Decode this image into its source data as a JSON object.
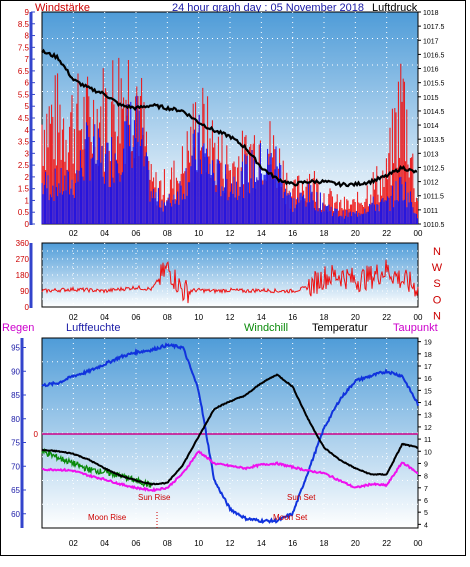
{
  "panel1": {
    "left_label": "Windstärke",
    "title": "24 hour graph day : 05 November 2018",
    "right_label": "Luftdruck",
    "left_ticks": [
      "0",
      "0.5",
      "1",
      "1.5",
      "2",
      "2.5",
      "3",
      "3.5",
      "4",
      "4.5",
      "5",
      "5.5",
      "6",
      "6.5",
      "7",
      "7.5",
      "8",
      "8.5",
      "9"
    ],
    "right_ticks": [
      "1010.5",
      "1011",
      "1011.5",
      "1012",
      "1012.5",
      "1013",
      "1013.5",
      "1014",
      "1014.5",
      "1015",
      "1015.5",
      "1016",
      "1016.5",
      "1017",
      "1017.5",
      "1018"
    ],
    "x_ticks": [
      "02",
      "04",
      "06",
      "08",
      "10",
      "12",
      "14",
      "16",
      "18",
      "20",
      "22",
      "00"
    ]
  },
  "panel2": {
    "left_ticks": [
      "0",
      "90",
      "180",
      "270",
      "360"
    ],
    "right_letters": [
      "N",
      "W",
      "S",
      "O",
      "N"
    ],
    "x_ticks": [
      "02",
      "04",
      "06",
      "08",
      "10",
      "12",
      "14",
      "16",
      "18",
      "20",
      "22",
      "00"
    ]
  },
  "panel3": {
    "label_regen": "Regen",
    "label_luftfeuchte": "Luftfeuchte",
    "label_windchill": "Windchill",
    "label_temperatur": "Temperatur",
    "label_taupunkt": "Taupunkt",
    "left_ticks": [
      "60",
      "65",
      "70",
      "75",
      "80",
      "85",
      "90",
      "95"
    ],
    "rain_zero": "0",
    "right_ticks": [
      "4",
      "5",
      "6",
      "7",
      "8",
      "9",
      "10",
      "11",
      "12",
      "13",
      "14",
      "15",
      "16",
      "17",
      "18",
      "19"
    ],
    "x_ticks": [
      "02",
      "04",
      "06",
      "08",
      "10",
      "12",
      "14",
      "16",
      "18",
      "20",
      "22",
      "00"
    ],
    "annotations": {
      "sun_rise": "Sun Rise",
      "sun_set": "Sun Set",
      "moon_rise": "Moon Rise",
      "moon_set": "Moon Set"
    }
  },
  "colors": {
    "wind_gust": "#ee1111",
    "wind_avg": "#1111ee",
    "pressure": "#000000",
    "direction": "#ee1111",
    "humidity": "#1133dd",
    "temperature": "#000000",
    "windchill": "#0a8a0a",
    "dewpoint": "#ee11ee",
    "rain_line": "#cc0088",
    "axis_left": "#3344cc",
    "axis_red": "#cc0000",
    "plot_top": "#4f9cd8",
    "plot_bottom": "#ffffff"
  },
  "chart_data": [
    {
      "type": "line",
      "title": "24 hour graph day : 05 November 2018",
      "x_unit": "hour",
      "xlim": [
        0,
        24
      ],
      "series": [
        {
          "name": "Luftdruck",
          "axis": "right",
          "ylim": [
            1010.5,
            1018
          ],
          "x": [
            0,
            1,
            2,
            3,
            4,
            5,
            6,
            7,
            8,
            9,
            10,
            11,
            12,
            13,
            14,
            15,
            16,
            17,
            18,
            19,
            20,
            21,
            22,
            23,
            24
          ],
          "values": [
            1016.6,
            1016.4,
            1015.6,
            1015.3,
            1015.1,
            1014.7,
            1014.6,
            1014.7,
            1014.6,
            1014.5,
            1014.1,
            1013.8,
            1013.6,
            1013.2,
            1012.5,
            1012.1,
            1011.9,
            1012.0,
            1012.0,
            1011.9,
            1011.9,
            1012.0,
            1012.2,
            1012.5,
            1012.3
          ]
        },
        {
          "name": "Windstärke",
          "axis": "left",
          "ylim": [
            0,
            9
          ],
          "x": [
            0,
            1,
            2,
            3,
            4,
            5,
            6,
            7,
            8,
            9,
            10,
            11,
            12,
            13,
            14,
            15,
            16,
            17,
            18,
            19,
            20,
            21,
            22,
            23,
            24
          ],
          "values_gust": [
            5.5,
            5.5,
            5.5,
            5.5,
            6,
            7,
            7.5,
            2,
            2,
            3,
            5.5,
            4,
            3,
            3.5,
            4.5,
            3.5,
            1.5,
            2.5,
            1.5,
            1,
            1,
            2,
            2.5,
            7,
            1
          ],
          "values_avg": [
            2,
            2,
            2,
            4,
            3,
            4,
            5,
            1.5,
            1,
            2,
            4,
            2.5,
            2,
            2.5,
            3,
            3,
            1,
            1.5,
            1,
            0.5,
            0.5,
            1,
            1,
            2,
            0.5
          ]
        }
      ]
    },
    {
      "type": "line",
      "name": "wind direction",
      "xlim": [
        0,
        24
      ],
      "ylim": [
        0,
        360
      ],
      "x": [
        0,
        1,
        2,
        3,
        4,
        5,
        6,
        7,
        8,
        9,
        10,
        11,
        12,
        13,
        14,
        15,
        16,
        17,
        18,
        19,
        20,
        21,
        22,
        23,
        24
      ],
      "values": [
        90,
        95,
        100,
        95,
        90,
        100,
        110,
        100,
        220,
        90,
        95,
        90,
        95,
        90,
        95,
        90,
        90,
        110,
        170,
        180,
        150,
        170,
        210,
        150,
        110
      ]
    },
    {
      "type": "line",
      "xlim": [
        0,
        24
      ],
      "series": [
        {
          "name": "Luftfeuchte",
          "axis": "left",
          "ylim": [
            57,
            97
          ],
          "x": [
            0,
            1,
            2,
            3,
            4,
            5,
            6,
            7,
            8,
            9,
            10,
            11,
            12,
            13,
            14,
            15,
            16,
            17,
            18,
            19,
            20,
            21,
            22,
            23,
            24
          ],
          "values": [
            87,
            87.5,
            89,
            90,
            91.5,
            93,
            94,
            94.5,
            95.5,
            95,
            86,
            67,
            61,
            59,
            58.5,
            58.5,
            60,
            69,
            78,
            84,
            88,
            89,
            90,
            89,
            83
          ]
        },
        {
          "name": "Temperatur",
          "axis": "right",
          "ylim": [
            3.7,
            19.3
          ],
          "x": [
            0,
            1,
            2,
            3,
            4,
            5,
            6,
            7,
            8,
            9,
            10,
            11,
            12,
            13,
            14,
            15,
            16,
            17,
            18,
            19,
            20,
            21,
            22,
            23,
            24
          ],
          "values": [
            10.1,
            10.0,
            9.8,
            9.3,
            8.6,
            8.0,
            7.6,
            7.3,
            7.4,
            8.9,
            11.2,
            13.5,
            14.1,
            14.6,
            15.6,
            16.3,
            15.3,
            12.6,
            10.3,
            9.3,
            8.6,
            8.1,
            8.1,
            10.6,
            10.3
          ]
        },
        {
          "name": "Windchill",
          "axis": "right",
          "ylim": [
            3.7,
            19.3
          ],
          "x": [
            0,
            1,
            2,
            3,
            4,
            5,
            6,
            7
          ],
          "values": [
            10.0,
            9.5,
            9.0,
            8.5,
            8.3,
            8.0,
            7.6,
            7.2
          ]
        },
        {
          "name": "Taupunkt",
          "axis": "right",
          "ylim": [
            3.7,
            19.3
          ],
          "x": [
            0,
            1,
            2,
            3,
            4,
            5,
            6,
            7,
            8,
            9,
            10,
            11,
            12,
            13,
            14,
            15,
            16,
            17,
            18,
            19,
            20,
            21,
            22,
            23,
            24
          ],
          "values": [
            8.5,
            8.5,
            8.4,
            8.0,
            7.7,
            7.3,
            7.0,
            6.8,
            7.0,
            8.2,
            10.0,
            9.0,
            8.8,
            8.6,
            8.9,
            9.0,
            8.7,
            8.4,
            8.2,
            7.6,
            7.0,
            7.3,
            7.2,
            9.1,
            8.2
          ]
        },
        {
          "name": "Regen",
          "axis": "rain",
          "values": [
            0
          ]
        }
      ]
    }
  ]
}
